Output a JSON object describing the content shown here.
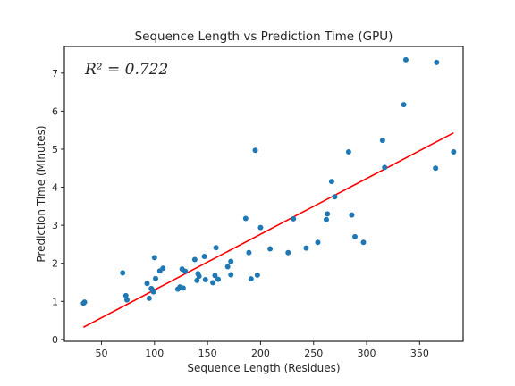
{
  "chart_data": {
    "type": "scatter",
    "title": "Sequence Length vs Prediction Time (GPU)",
    "xlabel": "Sequence Length (Residues)",
    "ylabel": "Prediction Time (Minutes)",
    "annotation": "R² = 0.722",
    "xlim": [
      15,
      391
    ],
    "ylim": [
      -0.05,
      7.7
    ],
    "xticks": [
      50,
      100,
      150,
      200,
      250,
      300,
      350
    ],
    "yticks": [
      0,
      1,
      2,
      3,
      4,
      5,
      6,
      7
    ],
    "grid": false,
    "point_color": "#1f77b4",
    "fit_color": "#ff0000",
    "fit_line": {
      "x": [
        33,
        382
      ],
      "y": [
        0.32,
        5.43
      ]
    },
    "points": [
      {
        "x": 33,
        "y": 0.95
      },
      {
        "x": 34,
        "y": 0.98
      },
      {
        "x": 70,
        "y": 1.75
      },
      {
        "x": 73,
        "y": 1.15
      },
      {
        "x": 74,
        "y": 1.04
      },
      {
        "x": 93,
        "y": 1.47
      },
      {
        "x": 95,
        "y": 1.08
      },
      {
        "x": 97,
        "y": 1.34
      },
      {
        "x": 98,
        "y": 1.3
      },
      {
        "x": 99,
        "y": 1.25
      },
      {
        "x": 100,
        "y": 2.15
      },
      {
        "x": 101,
        "y": 1.6
      },
      {
        "x": 105,
        "y": 1.8
      },
      {
        "x": 108,
        "y": 1.87
      },
      {
        "x": 122,
        "y": 1.32
      },
      {
        "x": 124,
        "y": 1.38
      },
      {
        "x": 126,
        "y": 1.85
      },
      {
        "x": 127,
        "y": 1.35
      },
      {
        "x": 129,
        "y": 1.79
      },
      {
        "x": 138,
        "y": 2.1
      },
      {
        "x": 140,
        "y": 1.55
      },
      {
        "x": 141,
        "y": 1.73
      },
      {
        "x": 142,
        "y": 1.66
      },
      {
        "x": 147,
        "y": 2.18
      },
      {
        "x": 148,
        "y": 1.57
      },
      {
        "x": 155,
        "y": 1.49
      },
      {
        "x": 157,
        "y": 1.68
      },
      {
        "x": 158,
        "y": 2.41
      },
      {
        "x": 160,
        "y": 1.58
      },
      {
        "x": 169,
        "y": 1.91
      },
      {
        "x": 172,
        "y": 2.05
      },
      {
        "x": 172,
        "y": 1.7
      },
      {
        "x": 186,
        "y": 3.18
      },
      {
        "x": 189,
        "y": 2.28
      },
      {
        "x": 191,
        "y": 1.59
      },
      {
        "x": 195,
        "y": 4.97
      },
      {
        "x": 197,
        "y": 1.69
      },
      {
        "x": 200,
        "y": 2.94
      },
      {
        "x": 209,
        "y": 2.38
      },
      {
        "x": 226,
        "y": 2.28
      },
      {
        "x": 231,
        "y": 3.17
      },
      {
        "x": 243,
        "y": 2.4
      },
      {
        "x": 254,
        "y": 2.55
      },
      {
        "x": 262,
        "y": 3.15
      },
      {
        "x": 263,
        "y": 3.3
      },
      {
        "x": 267,
        "y": 4.15
      },
      {
        "x": 270,
        "y": 3.75
      },
      {
        "x": 283,
        "y": 4.93
      },
      {
        "x": 286,
        "y": 3.27
      },
      {
        "x": 289,
        "y": 2.7
      },
      {
        "x": 297,
        "y": 2.55
      },
      {
        "x": 315,
        "y": 5.23
      },
      {
        "x": 317,
        "y": 4.52
      },
      {
        "x": 335,
        "y": 6.17
      },
      {
        "x": 337,
        "y": 7.35
      },
      {
        "x": 365,
        "y": 4.5
      },
      {
        "x": 366,
        "y": 7.28
      },
      {
        "x": 382,
        "y": 4.93
      }
    ]
  }
}
